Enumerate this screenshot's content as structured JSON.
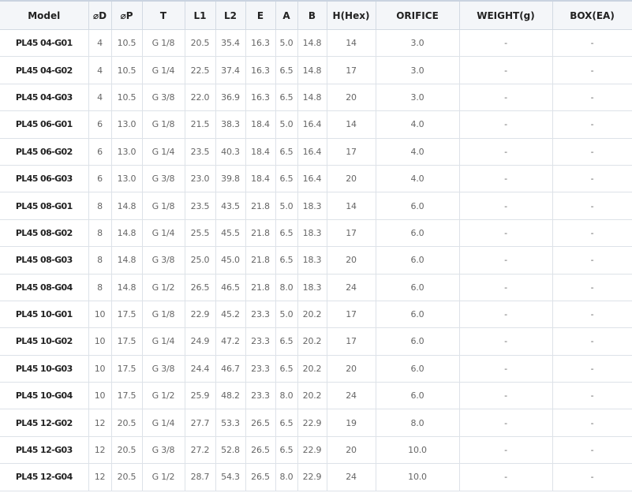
{
  "table": {
    "headers": [
      "Model",
      "⌀D",
      "⌀P",
      "T",
      "L1",
      "L2",
      "E",
      "A",
      "B",
      "H(Hex)",
      "ORIFICE",
      "WEIGHT(g)",
      "BOX(EA)"
    ],
    "rows": [
      [
        "PL45 04-G01",
        "4",
        "10.5",
        "G 1/8",
        "20.5",
        "35.4",
        "16.3",
        "5.0",
        "14.8",
        "14",
        "3.0",
        "-",
        "-"
      ],
      [
        "PL45 04-G02",
        "4",
        "10.5",
        "G 1/4",
        "22.5",
        "37.4",
        "16.3",
        "6.5",
        "14.8",
        "17",
        "3.0",
        "-",
        "-"
      ],
      [
        "PL45 04-G03",
        "4",
        "10.5",
        "G 3/8",
        "22.0",
        "36.9",
        "16.3",
        "6.5",
        "14.8",
        "20",
        "3.0",
        "-",
        "-"
      ],
      [
        "PL45 06-G01",
        "6",
        "13.0",
        "G 1/8",
        "21.5",
        "38.3",
        "18.4",
        "5.0",
        "16.4",
        "14",
        "4.0",
        "-",
        "-"
      ],
      [
        "PL45 06-G02",
        "6",
        "13.0",
        "G 1/4",
        "23.5",
        "40.3",
        "18.4",
        "6.5",
        "16.4",
        "17",
        "4.0",
        "-",
        "-"
      ],
      [
        "PL45 06-G03",
        "6",
        "13.0",
        "G 3/8",
        "23.0",
        "39.8",
        "18.4",
        "6.5",
        "16.4",
        "20",
        "4.0",
        "-",
        "-"
      ],
      [
        "PL45 08-G01",
        "8",
        "14.8",
        "G 1/8",
        "23.5",
        "43.5",
        "21.8",
        "5.0",
        "18.3",
        "14",
        "6.0",
        "-",
        "-"
      ],
      [
        "PL45 08-G02",
        "8",
        "14.8",
        "G 1/4",
        "25.5",
        "45.5",
        "21.8",
        "6.5",
        "18.3",
        "17",
        "6.0",
        "-",
        "-"
      ],
      [
        "PL45 08-G03",
        "8",
        "14.8",
        "G 3/8",
        "25.0",
        "45.0",
        "21.8",
        "6.5",
        "18.3",
        "20",
        "6.0",
        "-",
        "-"
      ],
      [
        "PL45 08-G04",
        "8",
        "14.8",
        "G 1/2",
        "26.5",
        "46.5",
        "21.8",
        "8.0",
        "18.3",
        "24",
        "6.0",
        "-",
        "-"
      ],
      [
        "PL45 10-G01",
        "10",
        "17.5",
        "G 1/8",
        "22.9",
        "45.2",
        "23.3",
        "5.0",
        "20.2",
        "17",
        "6.0",
        "-",
        "-"
      ],
      [
        "PL45 10-G02",
        "10",
        "17.5",
        "G 1/4",
        "24.9",
        "47.2",
        "23.3",
        "6.5",
        "20.2",
        "17",
        "6.0",
        "-",
        "-"
      ],
      [
        "PL45 10-G03",
        "10",
        "17.5",
        "G 3/8",
        "24.4",
        "46.7",
        "23.3",
        "6.5",
        "20.2",
        "20",
        "6.0",
        "-",
        "-"
      ],
      [
        "PL45 10-G04",
        "10",
        "17.5",
        "G 1/2",
        "25.9",
        "48.2",
        "23.3",
        "8.0",
        "20.2",
        "24",
        "6.0",
        "-",
        "-"
      ],
      [
        "PL45 12-G02",
        "12",
        "20.5",
        "G 1/4",
        "27.7",
        "53.3",
        "26.5",
        "6.5",
        "22.9",
        "19",
        "8.0",
        "-",
        "-"
      ],
      [
        "PL45 12-G03",
        "12",
        "20.5",
        "G 3/8",
        "27.2",
        "52.8",
        "26.5",
        "6.5",
        "22.9",
        "20",
        "10.0",
        "-",
        "-"
      ],
      [
        "PL45 12-G04",
        "12",
        "20.5",
        "G 1/2",
        "28.7",
        "54.3",
        "26.5",
        "8.0",
        "22.9",
        "24",
        "10.0",
        "-",
        "-"
      ]
    ]
  }
}
